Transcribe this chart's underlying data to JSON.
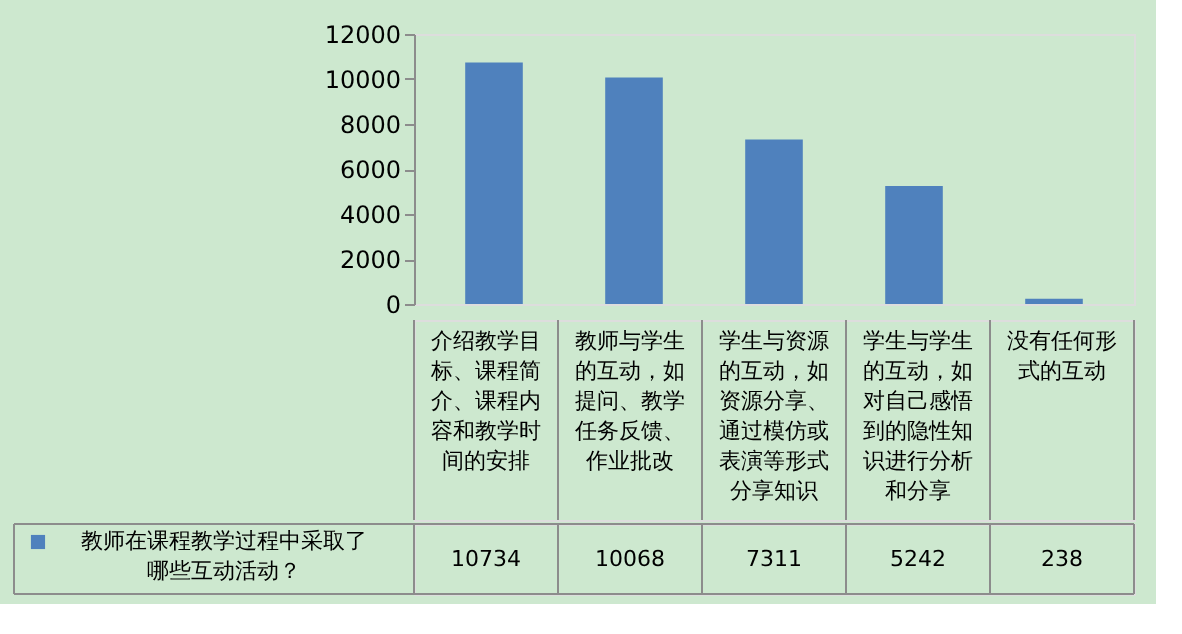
{
  "chart_data": {
    "type": "bar",
    "categories": [
      "介绍教学目标、课程简介、课程内容和教学时间的安排",
      "教师与学生的互动，如提问、教学任务反馈、作业批改",
      "学生与资源的互动，如资源分享、通过模仿或表演等形式分享知识",
      "学生与学生的互动，如对自己感悟到的隐性知识进行分析和分享",
      "没有任何形式的互动"
    ],
    "series": [
      {
        "name": "教师在课程教学过程中采取了哪些互动活动？",
        "color": "#4f81bd",
        "values": [
          10734,
          10068,
          7311,
          5242,
          238
        ]
      }
    ],
    "ylim": [
      0,
      12000
    ],
    "yticks": [
      0,
      2000,
      4000,
      6000,
      8000,
      10000,
      12000
    ],
    "grid": false,
    "data_labels": true,
    "legend": "bottom left"
  }
}
